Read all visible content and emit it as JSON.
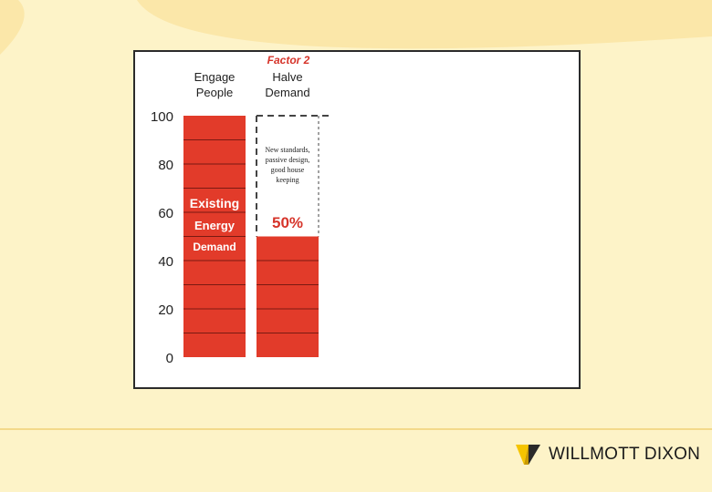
{
  "colors": {
    "background": "#fdf3c8",
    "bar": "#e23b2a",
    "accent": "#d6342a",
    "brand_yellow": "#f5c400"
  },
  "chart_data": {
    "type": "bar",
    "ylim": [
      0,
      100
    ],
    "y_ticks": [
      "0",
      "20",
      "40",
      "60",
      "80",
      "100"
    ],
    "grid": false,
    "factor_label": "Factor 2",
    "columns": [
      {
        "header": [
          "Engage",
          "People"
        ],
        "value": 100,
        "bar_text": [
          "Existing",
          "Energy",
          "Demand"
        ]
      },
      {
        "header": [
          "Halve",
          "Demand"
        ],
        "value": 50,
        "reduction_text": [
          "New standards,",
          "passive design,",
          "good house",
          "keeping"
        ],
        "reduction_value": "50%"
      }
    ]
  },
  "logo": {
    "text": "WILLMOTT DIXON",
    "icon": "willmott-dixon-logo-icon"
  }
}
